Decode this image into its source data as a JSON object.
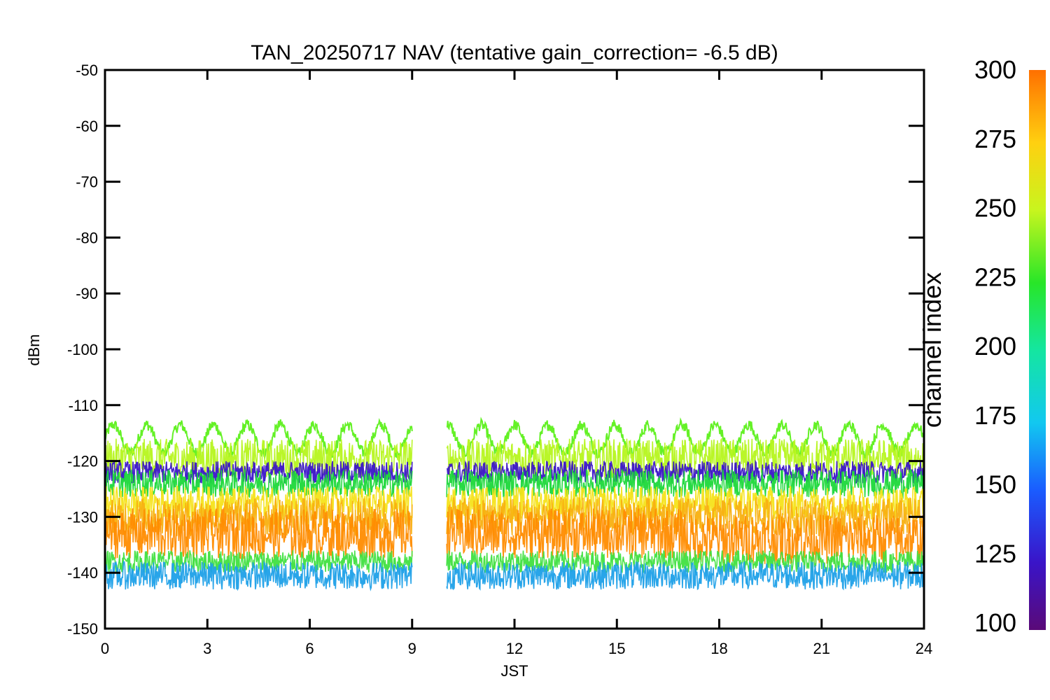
{
  "chart_data": {
    "type": "line",
    "title": "TAN_20250717 NAV (tentative gain_correction= -6.5 dB)",
    "xlabel": "JST",
    "ylabel": "dBm",
    "xlim": [
      0,
      24
    ],
    "ylim": [
      -150,
      -50
    ],
    "xticks": [
      "0",
      "3",
      "6",
      "9",
      "12",
      "15",
      "18",
      "21",
      "24"
    ],
    "yticks": [
      "-50",
      "-60",
      "-70",
      "-80",
      "-90",
      "-100",
      "-110",
      "-120",
      "-130",
      "-140",
      "-150"
    ],
    "data_gap_x": [
      9.0,
      10.0
    ],
    "grid": false,
    "colorbar": {
      "label": "channel index",
      "range": [
        100,
        300
      ],
      "ticks": [
        "300",
        "275",
        "250",
        "225",
        "200",
        "175",
        "150",
        "125",
        "100"
      ],
      "colormap": "rainbow"
    },
    "series": [
      {
        "color": "#5cf01a",
        "kind": "oscillating",
        "baseline": -116,
        "amplitude": 2.5,
        "period_hours": 0.98,
        "spread": 1.0
      },
      {
        "color": "#b6f51e",
        "kind": "band",
        "center": -119.5,
        "spread": 3.5
      },
      {
        "color": "#3a14c8",
        "kind": "band",
        "center": -122.0,
        "spread": 2.0
      },
      {
        "color": "#1cd83a",
        "kind": "band",
        "center": -124.0,
        "spread": 2.5
      },
      {
        "color": "#f5e31a",
        "kind": "band",
        "center": -127.5,
        "spread": 3.0
      },
      {
        "color": "#f8b010",
        "kind": "band",
        "center": -130.0,
        "spread": 3.5
      },
      {
        "color": "#ff8c00",
        "kind": "band",
        "center": -133.0,
        "spread": 4.5,
        "shift_after_x": 17.0,
        "shift_db": -1.0
      },
      {
        "color": "#40e040",
        "kind": "band",
        "center": -138.0,
        "spread": 2.0
      },
      {
        "color": "#1ea0e8",
        "kind": "band",
        "center": -140.5,
        "spread": 2.5
      }
    ]
  }
}
